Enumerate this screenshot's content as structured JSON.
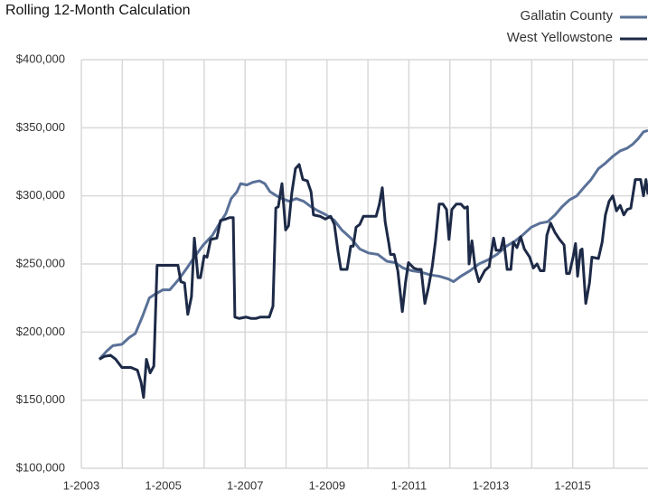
{
  "chart_data": {
    "type": "line",
    "title": "Rolling 12-Month Calculation",
    "xlim": [
      2003,
      2016.84
    ],
    "xticks": [
      {
        "value": 2003,
        "label": "1-2003"
      },
      {
        "value": 2005,
        "label": "1-2005"
      },
      {
        "value": 2007,
        "label": "1-2007"
      },
      {
        "value": 2009,
        "label": "1-2009"
      },
      {
        "value": 2011,
        "label": "1-2011"
      },
      {
        "value": 2013,
        "label": "1-2013"
      },
      {
        "value": 2015,
        "label": "1-2015"
      }
    ],
    "minor_xticks": [
      2004,
      2006,
      2008,
      2010,
      2012,
      2014,
      2016
    ],
    "ylim": [
      100000,
      400000
    ],
    "yticks": [
      {
        "value": 100000,
        "label": "$100,000"
      },
      {
        "value": 150000,
        "label": "$150,000"
      },
      {
        "value": 200000,
        "label": "$200,000"
      },
      {
        "value": 250000,
        "label": "$250,000"
      },
      {
        "value": 300000,
        "label": "$300,000"
      },
      {
        "value": 350000,
        "label": "$350,000"
      },
      {
        "value": 400000,
        "label": "$400,000"
      }
    ],
    "grid": true,
    "legend": "top-right",
    "series": [
      {
        "name": "Gallatin County",
        "color": "#5a7198",
        "x": [
          2003.44,
          2003.62,
          2003.77,
          2003.99,
          2004.17,
          2004.32,
          2004.5,
          2004.66,
          2004.81,
          2004.99,
          2005.16,
          2005.36,
          2005.58,
          2005.76,
          2005.98,
          2006.2,
          2006.38,
          2006.53,
          2006.66,
          2006.8,
          2006.89,
          2007.04,
          2007.19,
          2007.35,
          2007.48,
          2007.61,
          2007.77,
          2007.9,
          2008.08,
          2008.25,
          2008.43,
          2008.61,
          2008.78,
          2008.98,
          2009.18,
          2009.36,
          2009.58,
          2009.8,
          2010.02,
          2010.24,
          2010.46,
          2010.66,
          2010.86,
          2011.08,
          2011.3,
          2011.52,
          2011.74,
          2011.96,
          2012.09,
          2012.27,
          2012.49,
          2012.71,
          2012.93,
          2013.15,
          2013.38,
          2013.6,
          2013.77,
          2013.99,
          2014.21,
          2014.39,
          2014.57,
          2014.74,
          2014.92,
          2015.1,
          2015.27,
          2015.45,
          2015.63,
          2015.8,
          2015.98,
          2016.16,
          2016.33,
          2016.47,
          2016.6,
          2016.73,
          2016.84
        ],
        "values": [
          180000,
          186000,
          190000,
          191000,
          196000,
          199000,
          212000,
          225000,
          228000,
          231000,
          231000,
          238000,
          247000,
          255000,
          264000,
          271000,
          280000,
          287000,
          298000,
          303000,
          309000,
          308000,
          310000,
          311000,
          309000,
          303000,
          300000,
          298000,
          296000,
          298000,
          296000,
          292000,
          289000,
          286000,
          282000,
          275000,
          269000,
          261000,
          258000,
          257000,
          252000,
          251000,
          247000,
          245000,
          244000,
          242000,
          241000,
          239000,
          237000,
          241000,
          245000,
          250000,
          253000,
          257000,
          263000,
          267000,
          271000,
          277000,
          280000,
          281000,
          286000,
          292000,
          297000,
          300000,
          306000,
          312000,
          320000,
          324000,
          329000,
          333000,
          335000,
          338000,
          342000,
          347000,
          348000
        ]
      },
      {
        "name": "West Yellowstone",
        "color": "#1d2a47",
        "x": [
          2003.44,
          2003.55,
          2003.71,
          2003.84,
          2003.99,
          2004.21,
          2004.37,
          2004.46,
          2004.52,
          2004.59,
          2004.68,
          2004.77,
          2004.85,
          2004.99,
          2005.21,
          2005.36,
          2005.43,
          2005.52,
          2005.6,
          2005.69,
          2005.76,
          2005.85,
          2005.91,
          2006.0,
          2006.07,
          2006.16,
          2006.31,
          2006.4,
          2006.53,
          2006.62,
          2006.71,
          2006.75,
          2006.86,
          2007.02,
          2007.15,
          2007.26,
          2007.37,
          2007.59,
          2007.68,
          2007.75,
          2007.81,
          2007.9,
          2007.99,
          2008.06,
          2008.14,
          2008.23,
          2008.32,
          2008.41,
          2008.52,
          2008.61,
          2008.67,
          2008.83,
          2008.96,
          2009.09,
          2009.18,
          2009.27,
          2009.34,
          2009.42,
          2009.49,
          2009.58,
          2009.64,
          2009.71,
          2009.8,
          2009.89,
          2010.06,
          2010.2,
          2010.28,
          2010.35,
          2010.42,
          2010.51,
          2010.55,
          2010.64,
          2010.73,
          2010.84,
          2010.92,
          2010.99,
          2011.12,
          2011.21,
          2011.3,
          2011.39,
          2011.48,
          2011.57,
          2011.65,
          2011.74,
          2011.83,
          2011.92,
          2011.98,
          2012.05,
          2012.16,
          2012.27,
          2012.36,
          2012.43,
          2012.47,
          2012.54,
          2012.62,
          2012.71,
          2012.85,
          2012.96,
          2013.07,
          2013.13,
          2013.24,
          2013.31,
          2013.4,
          2013.49,
          2013.55,
          2013.64,
          2013.73,
          2013.82,
          2013.95,
          2014.04,
          2014.13,
          2014.21,
          2014.3,
          2014.37,
          2014.46,
          2014.57,
          2014.68,
          2014.79,
          2014.85,
          2014.92,
          2015.01,
          2015.07,
          2015.12,
          2015.19,
          2015.23,
          2015.32,
          2015.41,
          2015.47,
          2015.63,
          2015.72,
          2015.8,
          2015.89,
          2015.98,
          2016.07,
          2016.16,
          2016.25,
          2016.33,
          2016.42,
          2016.53,
          2016.66,
          2016.73,
          2016.79,
          2016.84
        ],
        "values": [
          180000,
          182000,
          183000,
          180000,
          174000,
          174000,
          172000,
          163000,
          152000,
          180000,
          170000,
          175000,
          249000,
          249000,
          249000,
          249000,
          237000,
          236000,
          213000,
          226000,
          269000,
          240000,
          240000,
          256000,
          255000,
          268000,
          269000,
          282000,
          283000,
          284000,
          284000,
          211000,
          210000,
          211000,
          210000,
          210000,
          211000,
          211000,
          219000,
          291000,
          292000,
          309000,
          275000,
          278000,
          302000,
          320000,
          323000,
          312000,
          311000,
          303000,
          286000,
          285000,
          283000,
          285000,
          279000,
          259000,
          246000,
          246000,
          246000,
          263000,
          263000,
          277000,
          279000,
          285000,
          285000,
          285000,
          294000,
          306000,
          281000,
          265000,
          257000,
          257000,
          245000,
          215000,
          237000,
          251000,
          247000,
          246000,
          246000,
          221000,
          233000,
          248000,
          267000,
          294000,
          294000,
          290000,
          268000,
          290000,
          294000,
          294000,
          291000,
          292000,
          250000,
          267000,
          247000,
          237000,
          245000,
          248000,
          269000,
          260000,
          260000,
          269000,
          246000,
          246000,
          266000,
          262000,
          270000,
          261000,
          255000,
          247000,
          250000,
          245000,
          245000,
          271000,
          280000,
          273000,
          268000,
          264000,
          243000,
          243000,
          255000,
          265000,
          241000,
          260000,
          261000,
          221000,
          236000,
          255000,
          254000,
          266000,
          286000,
          296000,
          300000,
          289000,
          293000,
          286000,
          290000,
          291000,
          312000,
          312000,
          300000,
          312000,
          301000
        ]
      }
    ]
  }
}
